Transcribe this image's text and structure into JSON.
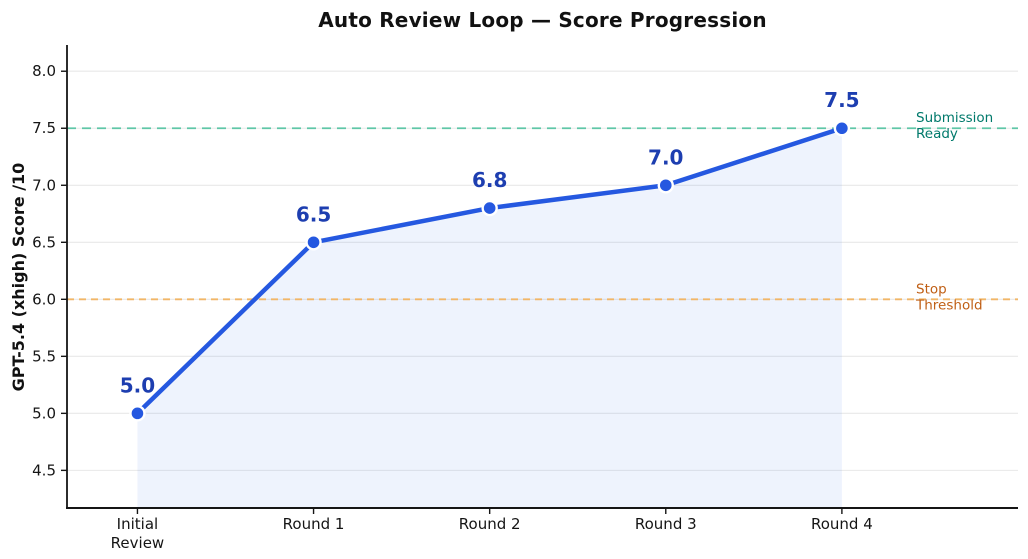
{
  "chart_data": {
    "type": "line",
    "title": "Auto Review Loop — Score Progression",
    "ylabel": "GPT-5.4 (xhigh) Score  /10",
    "xlabel": "",
    "categories": [
      "Initial\nReview",
      "Round 1",
      "Round 2",
      "Round 3",
      "Round 4"
    ],
    "values": [
      5.0,
      6.5,
      6.8,
      7.0,
      7.5
    ],
    "point_labels": [
      "5.0",
      "6.5",
      "6.8",
      "7.0",
      "7.5"
    ],
    "ylim": [
      4.17,
      8.23
    ],
    "xlim": [
      -0.4,
      5.0
    ],
    "yticks": [
      4.5,
      5.0,
      5.5,
      6.0,
      6.5,
      7.0,
      7.5,
      8.0
    ],
    "grid": true,
    "legend_position": "none",
    "colors": {
      "line": "#2558e0",
      "marker_fill": "#2558e0",
      "marker_edge": "#ffffff",
      "area_fill": "#2563eb",
      "area_fill_opacity": 0.08,
      "point_label": "#1d3eb0",
      "gridline": "#e8e8e8",
      "axis": "#151515",
      "tick_label": "#151515"
    },
    "reference_lines": [
      {
        "value": 7.5,
        "label": "Submission\nReady",
        "line_color": "#5fc6a7",
        "label_color": "#00796b",
        "style": "dashed"
      },
      {
        "value": 6.0,
        "label": "Stop\nThreshold",
        "line_color": "#f1b668",
        "label_color": "#c05f15",
        "style": "dashed"
      }
    ]
  }
}
